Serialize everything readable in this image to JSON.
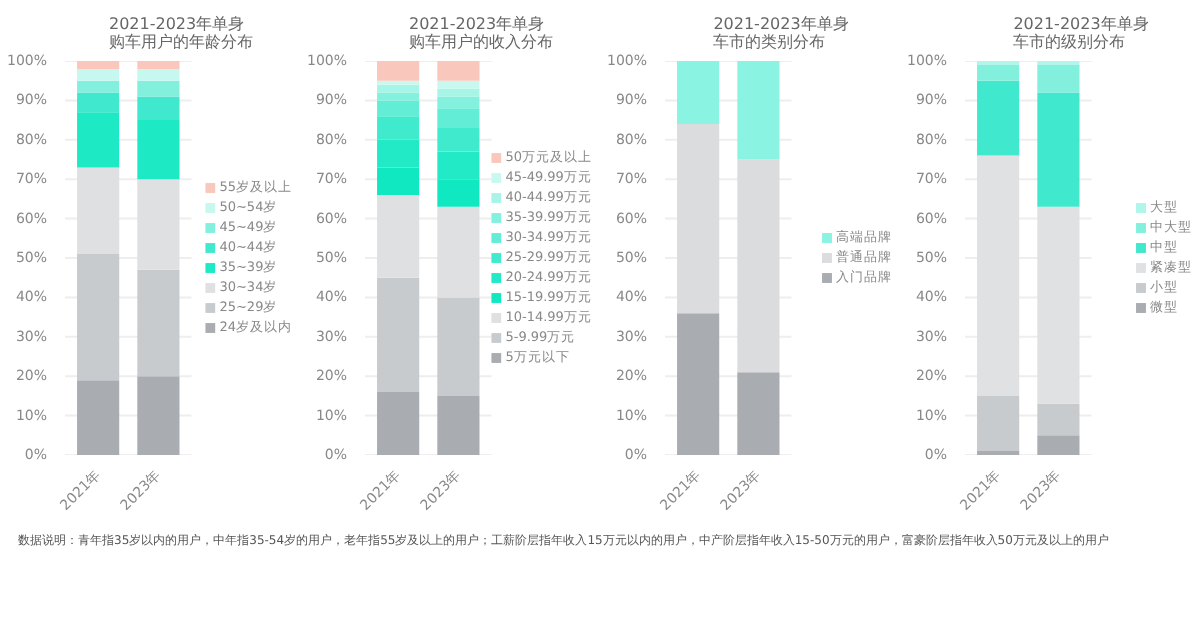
{
  "chart_data": [
    {
      "type": "bar",
      "stacked": true,
      "title": "2021-2023年单身购车用户的年龄分布",
      "categories": [
        "2021年",
        "2023年"
      ],
      "ylim": [
        0,
        100
      ],
      "yticks": [
        {
          "value": 0,
          "label": "0%"
        },
        {
          "value": 10,
          "label": "10%"
        },
        {
          "value": 20,
          "label": "20%"
        },
        {
          "value": 30,
          "label": "30%"
        },
        {
          "value": 40,
          "label": "40%"
        },
        {
          "value": 50,
          "label": "50%"
        },
        {
          "value": 60,
          "label": "60%"
        },
        {
          "value": 70,
          "label": "70%"
        },
        {
          "value": 80,
          "label": "80%"
        },
        {
          "value": 90,
          "label": "90%"
        },
        {
          "value": 100,
          "label": "100%"
        }
      ],
      "grid": "y",
      "legend": "right",
      "series": [
        {
          "name": "24岁及以内",
          "color": "#a9adb1",
          "values": [
            19,
            20
          ]
        },
        {
          "name": "25~29岁",
          "color": "#c8cbce",
          "values": [
            32,
            27
          ]
        },
        {
          "name": "30~34岁",
          "color": "#dfe0e2",
          "values": [
            22,
            23
          ]
        },
        {
          "name": "35~39岁",
          "color": "#1de9c5",
          "values": [
            14,
            15
          ]
        },
        {
          "name": "40~44岁",
          "color": "#40e8cd",
          "values": [
            5,
            6
          ]
        },
        {
          "name": "45~49岁",
          "color": "#82f0dd",
          "values": [
            3,
            4
          ]
        },
        {
          "name": "50~54岁",
          "color": "#c6f8ef",
          "values": [
            3,
            3
          ]
        },
        {
          "name": "55岁及以上",
          "color": "#f9c7bb",
          "values": [
            2,
            2
          ]
        }
      ],
      "annotations": [
        "数据说明：青年指35岁以内的用户，中年指35-54岁的用户，老年指55岁及以上的用户；工薪阶层指年收入15万元以内的用户，中产阶层指年收入15-50万元的用户，富豪阶层指年收入50万元及以上的用户"
      ]
    },
    {
      "type": "bar",
      "stacked": true,
      "title": "2021-2023年单身购车用户的收入分布",
      "categories": [
        "2021年",
        "2023年"
      ],
      "ylim": [
        0,
        100
      ],
      "yticks": [
        {
          "value": 0,
          "label": "0%"
        },
        {
          "value": 10,
          "label": "10%"
        },
        {
          "value": 20,
          "label": "20%"
        },
        {
          "value": 30,
          "label": "30%"
        },
        {
          "value": 40,
          "label": "40%"
        },
        {
          "value": 50,
          "label": "50%"
        },
        {
          "value": 60,
          "label": "60%"
        },
        {
          "value": 70,
          "label": "70%"
        },
        {
          "value": 80,
          "label": "80%"
        },
        {
          "value": 90,
          "label": "90%"
        },
        {
          "value": 100,
          "label": "100%"
        }
      ],
      "grid": "y",
      "legend": "right",
      "series": [
        {
          "name": "5万元以下",
          "color": "#a9adb1",
          "values": [
            16,
            15
          ]
        },
        {
          "name": "5-9.99万元",
          "color": "#c8cbce",
          "values": [
            29,
            25
          ]
        },
        {
          "name": "10-14.99万元",
          "color": "#dfe0e2",
          "values": [
            21,
            23
          ]
        },
        {
          "name": "15-19.99万元",
          "color": "#0fe8c0",
          "values": [
            7,
            7
          ]
        },
        {
          "name": "20-24.99万元",
          "color": "#22eac6",
          "values": [
            7,
            7
          ]
        },
        {
          "name": "25-29.99万元",
          "color": "#40ebcd",
          "values": [
            6,
            6
          ]
        },
        {
          "name": "30-34.99万元",
          "color": "#62eed6",
          "values": [
            4,
            5
          ]
        },
        {
          "name": "35-39.99万元",
          "color": "#84f1de",
          "values": [
            2,
            3
          ]
        },
        {
          "name": "40-44.99万元",
          "color": "#a6f5e7",
          "values": [
            2,
            2
          ]
        },
        {
          "name": "45-49.99万元",
          "color": "#c8f9f0",
          "values": [
            1,
            2
          ]
        },
        {
          "name": "50万元及以上",
          "color": "#f9c7bb",
          "values": [
            5,
            5
          ]
        }
      ]
    },
    {
      "type": "bar",
      "stacked": true,
      "title": "2021-2023年单身车市的类别分布",
      "categories": [
        "2021年",
        "2023年"
      ],
      "ylim": [
        0,
        100
      ],
      "yticks": [
        {
          "value": 0,
          "label": "0%"
        },
        {
          "value": 10,
          "label": "10%"
        },
        {
          "value": 20,
          "label": "20%"
        },
        {
          "value": 30,
          "label": "30%"
        },
        {
          "value": 40,
          "label": "40%"
        },
        {
          "value": 50,
          "label": "50%"
        },
        {
          "value": 60,
          "label": "60%"
        },
        {
          "value": 70,
          "label": "70%"
        },
        {
          "value": 80,
          "label": "80%"
        },
        {
          "value": 90,
          "label": "90%"
        },
        {
          "value": 100,
          "label": "100%"
        }
      ],
      "grid": "y",
      "legend": "right",
      "series": [
        {
          "name": "入门品牌",
          "color": "#a9adb1",
          "values": [
            36,
            21
          ]
        },
        {
          "name": "普通品牌",
          "color": "#dbdcde",
          "values": [
            48,
            54
          ]
        },
        {
          "name": "高端品牌",
          "color": "#8af3e1",
          "values": [
            16,
            25
          ]
        }
      ]
    },
    {
      "type": "bar",
      "stacked": true,
      "title": "2021-2023年单身车市的级别分布",
      "categories": [
        "2021年",
        "2023年"
      ],
      "ylim": [
        0,
        100
      ],
      "yticks": [
        {
          "value": 0,
          "label": "0%"
        },
        {
          "value": 10,
          "label": "10%"
        },
        {
          "value": 20,
          "label": "20%"
        },
        {
          "value": 30,
          "label": "30%"
        },
        {
          "value": 40,
          "label": "40%"
        },
        {
          "value": 50,
          "label": "50%"
        },
        {
          "value": 60,
          "label": "60%"
        },
        {
          "value": 70,
          "label": "70%"
        },
        {
          "value": 80,
          "label": "80%"
        },
        {
          "value": 90,
          "label": "90%"
        },
        {
          "value": 100,
          "label": "100%"
        }
      ],
      "grid": "y",
      "legend": "right",
      "series": [
        {
          "name": "微型",
          "color": "#a9adb1",
          "values": [
            1,
            5
          ]
        },
        {
          "name": "小型",
          "color": "#c8cbce",
          "values": [
            14,
            8
          ]
        },
        {
          "name": "紧凑型",
          "color": "#e0e1e3",
          "values": [
            61,
            50
          ]
        },
        {
          "name": "中型",
          "color": "#40e8cd",
          "values": [
            19,
            29
          ]
        },
        {
          "name": "中大型",
          "color": "#82f0dd",
          "values": [
            4,
            7
          ]
        },
        {
          "name": "大型",
          "color": "#b0f6ea",
          "values": [
            1,
            1
          ]
        }
      ]
    }
  ]
}
